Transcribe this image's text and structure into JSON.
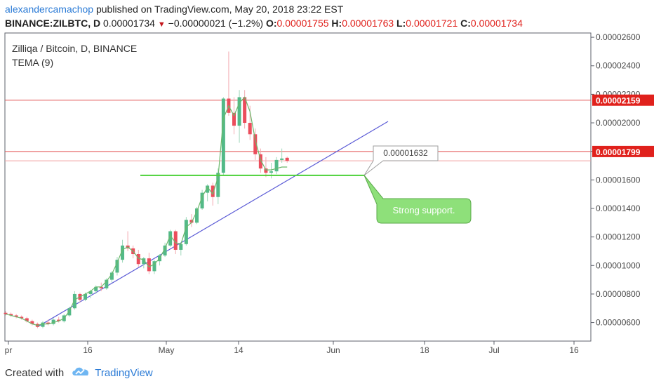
{
  "header": {
    "author": "alexandercamachop",
    "published_text": "published on TradingView.com, May 20, 2018 23:22 EST",
    "symbol": "BINANCE:ZILBTC, D",
    "last": "0.00001734",
    "change": "−0.00000021 (−1.2%)",
    "o_label": "O:",
    "o_value": "0.00001755",
    "h_label": "H:",
    "h_value": "0.00001763",
    "l_label": "L:",
    "l_value": "0.00001721",
    "c_label": "C:",
    "c_value": "0.00001734"
  },
  "legend": {
    "title": "Zilliqa / Bitcoin, D, BINANCE",
    "indicator": "TEMA (9)"
  },
  "footer": {
    "created_with": "Created with",
    "brand": "TradingView"
  },
  "colors": {
    "up": "#53b987",
    "down": "#eb4d5c",
    "tema": "#6bb86b",
    "support": "#4cd137",
    "trendline": "#5b5bd6",
    "price_line": "#e25050",
    "callout_fill": "#8ee07a"
  },
  "chart_data": {
    "type": "candlestick",
    "x_ticks": [
      "pr",
      "16",
      "May",
      "14",
      "Jun",
      "18",
      "Jul",
      "16"
    ],
    "y_ticks": [
      "0.00002600",
      "0.00002400",
      "0.00002200",
      "0.00002000",
      "0.00001800",
      "0.00001600",
      "0.00001400",
      "0.00001200",
      "0.00001000",
      "0.00000800",
      "0.00000600"
    ],
    "ylim": [
      4.7e-06,
      2.63e-05
    ],
    "candles": [
      {
        "o": 6.68e-06,
        "h": 6.8e-06,
        "l": 6.5e-06,
        "c": 6.6e-06
      },
      {
        "o": 6.6e-06,
        "h": 6.7e-06,
        "l": 6.4e-06,
        "c": 6.5e-06
      },
      {
        "o": 6.5e-06,
        "h": 6.6e-06,
        "l": 6.3e-06,
        "c": 6.4e-06
      },
      {
        "o": 6.4e-06,
        "h": 6.5e-06,
        "l": 6.2e-06,
        "c": 6.3e-06
      },
      {
        "o": 6.3e-06,
        "h": 6.4e-06,
        "l": 6e-06,
        "c": 6.1e-06
      },
      {
        "o": 6.1e-06,
        "h": 6.2e-06,
        "l": 5.8e-06,
        "c": 5.9e-06
      },
      {
        "o": 5.9e-06,
        "h": 6e-06,
        "l": 5.6e-06,
        "c": 5.7e-06
      },
      {
        "o": 5.7e-06,
        "h": 6.1e-06,
        "l": 5.6e-06,
        "c": 6e-06
      },
      {
        "o": 6e-06,
        "h": 6.2e-06,
        "l": 5.8e-06,
        "c": 5.9e-06
      },
      {
        "o": 5.9e-06,
        "h": 6.3e-06,
        "l": 5.8e-06,
        "c": 6.2e-06
      },
      {
        "o": 6.2e-06,
        "h": 6.4e-06,
        "l": 6e-06,
        "c": 6.1e-06
      },
      {
        "o": 6.1e-06,
        "h": 6.6e-06,
        "l": 6e-06,
        "c": 6.5e-06
      },
      {
        "o": 6.5e-06,
        "h": 7.1e-06,
        "l": 6.4e-06,
        "c": 7e-06
      },
      {
        "o": 7e-06,
        "h": 8.2e-06,
        "l": 6.9e-06,
        "c": 8e-06
      },
      {
        "o": 8e-06,
        "h": 8.1e-06,
        "l": 7.4e-06,
        "c": 7.6e-06
      },
      {
        "o": 7.6e-06,
        "h": 8.1e-06,
        "l": 7.5e-06,
        "c": 8e-06
      },
      {
        "o": 8e-06,
        "h": 8.3e-06,
        "l": 7.7e-06,
        "c": 8.2e-06
      },
      {
        "o": 8.2e-06,
        "h": 8.6e-06,
        "l": 8e-06,
        "c": 8.5e-06
      },
      {
        "o": 8.5e-06,
        "h": 8.8e-06,
        "l": 8.2e-06,
        "c": 8.4e-06
      },
      {
        "o": 8.4e-06,
        "h": 9.1e-06,
        "l": 8.3e-06,
        "c": 9e-06
      },
      {
        "o": 9e-06,
        "h": 9.6e-06,
        "l": 8.8e-06,
        "c": 9.5e-06
      },
      {
        "o": 9.5e-06,
        "h": 1.06e-05,
        "l": 9.3e-06,
        "c": 1.04e-05
      },
      {
        "o": 1.04e-05,
        "h": 1.18e-05,
        "l": 1.02e-05,
        "c": 1.14e-05
      },
      {
        "o": 1.14e-05,
        "h": 1.24e-05,
        "l": 1.1e-05,
        "c": 1.12e-05
      },
      {
        "o": 1.12e-05,
        "h": 1.14e-05,
        "l": 1.05e-05,
        "c": 1.08e-05
      },
      {
        "o": 1.08e-05,
        "h": 1.11e-05,
        "l": 9.9e-06,
        "c": 1.01e-05
      },
      {
        "o": 1.01e-05,
        "h": 1.06e-05,
        "l": 9.8e-06,
        "c": 1.05e-05
      },
      {
        "o": 1.05e-05,
        "h": 1.09e-05,
        "l": 9.4e-06,
        "c": 9.6e-06
      },
      {
        "o": 9.6e-06,
        "h": 1.04e-05,
        "l": 9.4e-06,
        "c": 1.03e-05
      },
      {
        "o": 1.03e-05,
        "h": 1.08e-05,
        "l": 1e-05,
        "c": 1.07e-05
      },
      {
        "o": 1.07e-05,
        "h": 1.16e-05,
        "l": 1.06e-05,
        "c": 1.14e-05
      },
      {
        "o": 1.14e-05,
        "h": 1.25e-05,
        "l": 1.13e-05,
        "c": 1.24e-05
      },
      {
        "o": 1.24e-05,
        "h": 1.25e-05,
        "l": 1.08e-05,
        "c": 1.11e-05
      },
      {
        "o": 1.11e-05,
        "h": 1.16e-05,
        "l": 1.07e-05,
        "c": 1.15e-05
      },
      {
        "o": 1.15e-05,
        "h": 1.34e-05,
        "l": 1.14e-05,
        "c": 1.32e-05
      },
      {
        "o": 1.32e-05,
        "h": 1.36e-05,
        "l": 1.27e-05,
        "c": 1.3e-05
      },
      {
        "o": 1.3e-05,
        "h": 1.41e-05,
        "l": 1.29e-05,
        "c": 1.4e-05
      },
      {
        "o": 1.4e-05,
        "h": 1.53e-05,
        "l": 1.39e-05,
        "c": 1.51e-05
      },
      {
        "o": 1.51e-05,
        "h": 1.57e-05,
        "l": 1.45e-05,
        "c": 1.56e-05
      },
      {
        "o": 1.56e-05,
        "h": 1.58e-05,
        "l": 1.42e-05,
        "c": 1.48e-05
      },
      {
        "o": 1.48e-05,
        "h": 1.68e-05,
        "l": 1.43e-05,
        "c": 1.65e-05
      },
      {
        "o": 1.65e-05,
        "h": 2.18e-05,
        "l": 1.63e-05,
        "c": 2.17e-05
      },
      {
        "o": 2.17e-05,
        "h": 2.5e-05,
        "l": 2.05e-05,
        "c": 2.07e-05
      },
      {
        "o": 2.07e-05,
        "h": 2.18e-05,
        "l": 1.92e-05,
        "c": 1.98e-05
      },
      {
        "o": 1.98e-05,
        "h": 2.23e-05,
        "l": 1.86e-05,
        "c": 2.18e-05
      },
      {
        "o": 2.18e-05,
        "h": 2.23e-05,
        "l": 1.96e-05,
        "c": 2e-05
      },
      {
        "o": 2e-05,
        "h": 2.12e-05,
        "l": 1.88e-05,
        "c": 1.92e-05
      },
      {
        "o": 1.92e-05,
        "h": 1.96e-05,
        "l": 1.74e-05,
        "c": 1.78e-05
      },
      {
        "o": 1.78e-05,
        "h": 1.82e-05,
        "l": 1.65e-05,
        "c": 1.68e-05
      },
      {
        "o": 1.68e-05,
        "h": 1.76e-05,
        "l": 1.62e-05,
        "c": 1.65e-05
      },
      {
        "o": 1.65e-05,
        "h": 1.72e-05,
        "l": 1.61e-05,
        "c": 1.66e-05
      },
      {
        "o": 1.66e-05,
        "h": 1.76e-05,
        "l": 1.64e-05,
        "c": 1.74e-05
      },
      {
        "o": 1.74e-05,
        "h": 1.82e-05,
        "l": 1.72e-05,
        "c": 1.75e-05
      },
      {
        "o": 1.755e-05,
        "h": 1.763e-05,
        "l": 1.721e-05,
        "c": 1.734e-05
      }
    ],
    "tema": [
      6.6e-06,
      6.5e-06,
      6.4e-06,
      6.3e-06,
      6.1e-06,
      5.9e-06,
      5.8e-06,
      5.9e-06,
      5.9e-06,
      6e-06,
      6.1e-06,
      6.3e-06,
      6.8e-06,
      7.6e-06,
      7.8e-06,
      8e-06,
      8.2e-06,
      8.5e-06,
      8.5e-06,
      8.9e-06,
      9.4e-06,
      1.02e-05,
      1.11e-05,
      1.13e-05,
      1.1e-05,
      1.05e-05,
      1.04e-05,
      9.9e-06,
      1.01e-05,
      1.05e-05,
      1.12e-05,
      1.21e-05,
      1.16e-05,
      1.15e-05,
      1.27e-05,
      1.3e-05,
      1.38e-05,
      1.48e-05,
      1.55e-05,
      1.5e-05,
      1.62e-05,
      2.03e-05,
      2.12e-05,
      2.05e-05,
      2.14e-05,
      2.18e-05,
      2.08e-05,
      1.88e-05,
      1.74e-05,
      1.67e-05,
      1.67e-05,
      1.68e-05,
      1.69e-05,
      1.69e-05
    ],
    "price_lines": [
      {
        "value": 2.159e-05,
        "label": "0.00002159"
      },
      {
        "value": 1.799e-05,
        "label": "0.00001799"
      }
    ],
    "last_price": 1.734e-05,
    "support": {
      "value": 1.632e-05,
      "label": "0.00001632",
      "note": "Strong support."
    },
    "trendline": {
      "from_index": 6,
      "from_value": 5.7e-06,
      "to_index": 72,
      "to_value": 2.01e-05
    }
  }
}
